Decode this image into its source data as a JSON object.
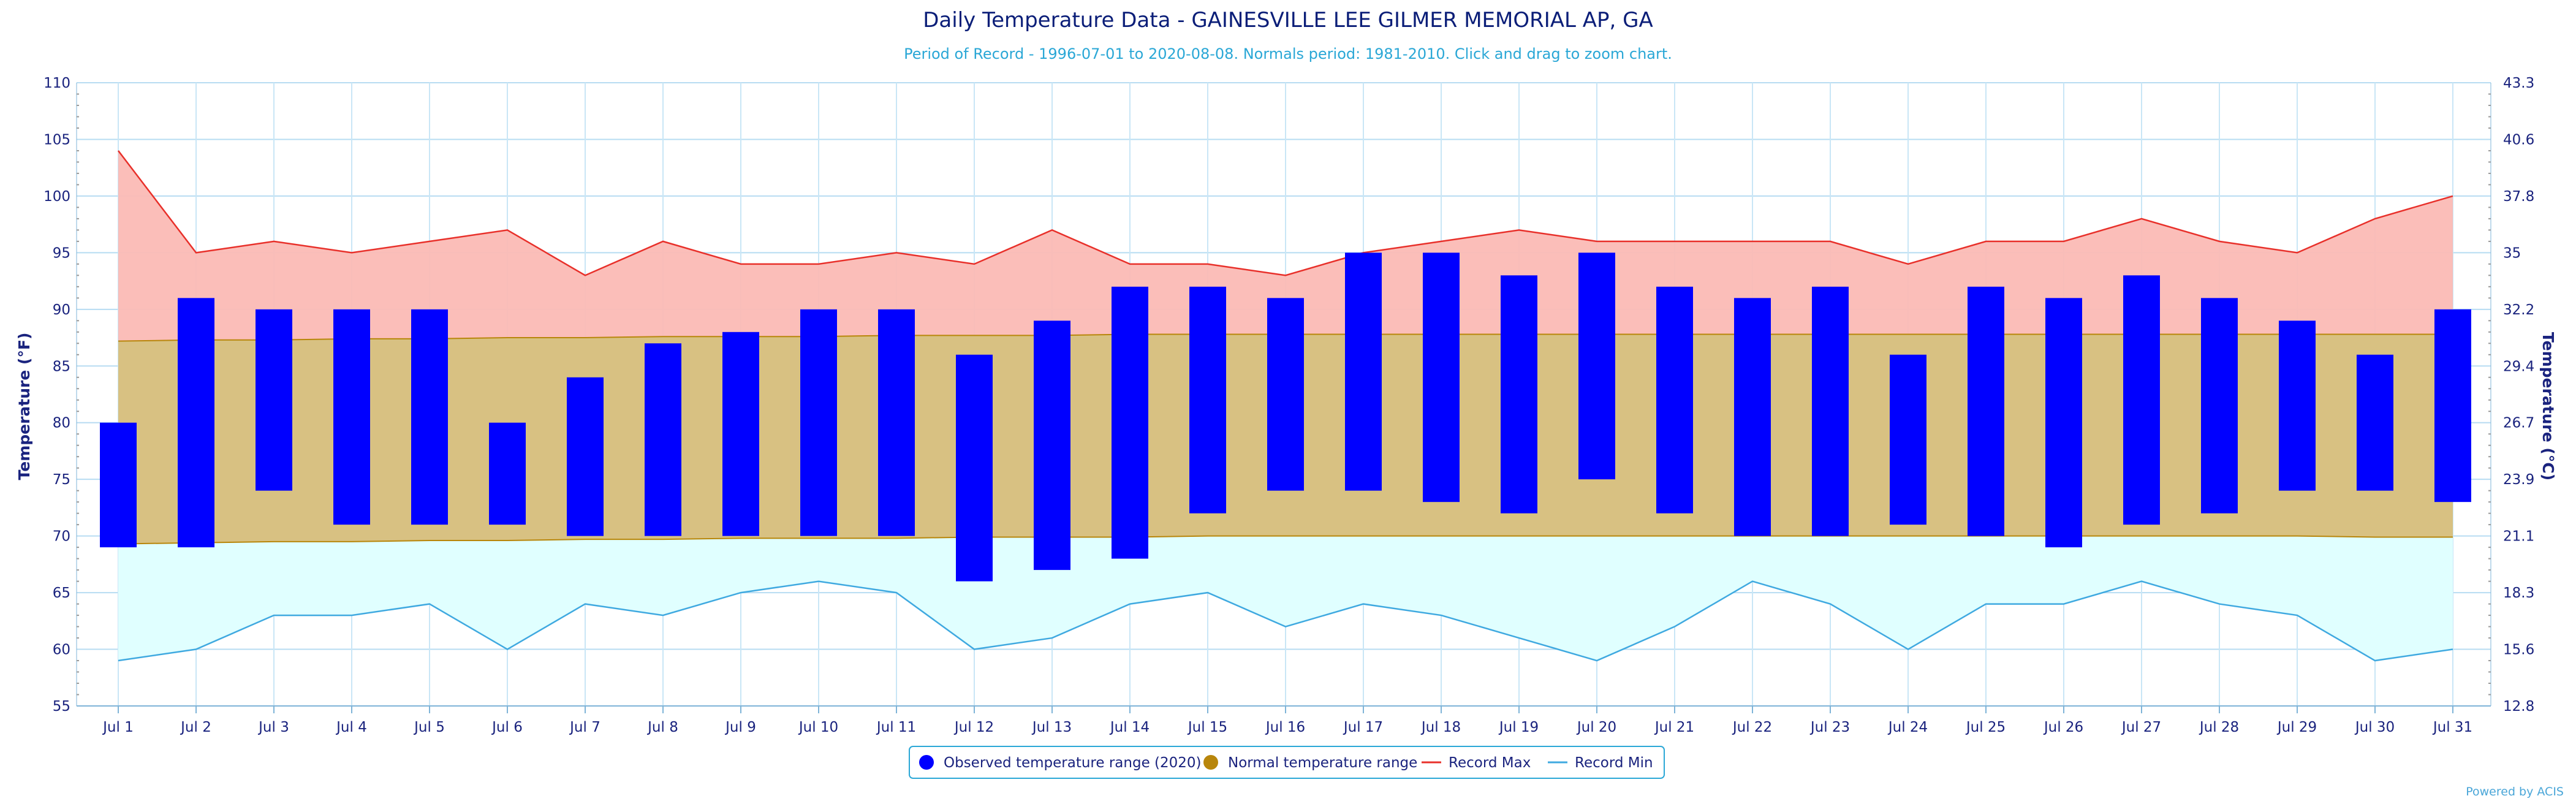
{
  "chart_data": {
    "type": "bar",
    "title": "Daily Temperature Data - GAINESVILLE LEE GILMER MEMORIAL AP, GA",
    "subtitle": "Period of Record - 1996-07-01 to 2020-08-08. Normals period: 1981-2010. Click and drag to zoom chart.",
    "ylabel_left": "Temperature (°F)",
    "ylabel_right": "Temperature (°C)",
    "ylim": [
      55,
      110
    ],
    "y_ticks": [
      55,
      60,
      65,
      70,
      75,
      80,
      85,
      90,
      95,
      100,
      105,
      110
    ],
    "y2_ticks": [
      "12.8",
      "15.6",
      "18.3",
      "21.1",
      "23.9",
      "26.7",
      "29.4",
      "32.2",
      "35",
      "37.8",
      "40.6",
      "43.3"
    ],
    "categories": [
      "Jul 1",
      "Jul 2",
      "Jul 3",
      "Jul 4",
      "Jul 5",
      "Jul 6",
      "Jul 7",
      "Jul 8",
      "Jul 9",
      "Jul 10",
      "Jul 11",
      "Jul 12",
      "Jul 13",
      "Jul 14",
      "Jul 15",
      "Jul 16",
      "Jul 17",
      "Jul 18",
      "Jul 19",
      "Jul 20",
      "Jul 21",
      "Jul 22",
      "Jul 23",
      "Jul 24",
      "Jul 25",
      "Jul 26",
      "Jul 27",
      "Jul 28",
      "Jul 29",
      "Jul 30",
      "Jul 31"
    ],
    "grid": true,
    "legend_position": "bottom-center",
    "series": [
      {
        "name": "Observed temperature range (2020)",
        "kind": "range-bar",
        "color": "#0000ff",
        "low": [
          69,
          69,
          74,
          71,
          71,
          71,
          70,
          70,
          70,
          70,
          70,
          66,
          67,
          68,
          72,
          74,
          74,
          73,
          72,
          75,
          72,
          70,
          70,
          71,
          70,
          69,
          71,
          72,
          74,
          74,
          73
        ],
        "high": [
          80,
          91,
          90,
          90,
          90,
          80,
          84,
          87,
          88,
          90,
          90,
          86,
          89,
          92,
          92,
          91,
          95,
          95,
          93,
          95,
          92,
          91,
          92,
          86,
          92,
          91,
          93,
          91,
          89,
          86,
          90
        ]
      },
      {
        "name": "Normal temperature range",
        "kind": "range-area",
        "color": "#b8860b",
        "low": [
          69.3,
          69.4,
          69.5,
          69.5,
          69.6,
          69.6,
          69.7,
          69.7,
          69.8,
          69.8,
          69.8,
          69.9,
          69.9,
          69.9,
          70.0,
          70.0,
          70.0,
          70.0,
          70.0,
          70.0,
          70.0,
          70.0,
          70.0,
          70.0,
          70.0,
          70.0,
          70.0,
          70.0,
          70.0,
          69.9,
          69.9
        ],
        "high": [
          87.2,
          87.3,
          87.3,
          87.4,
          87.4,
          87.5,
          87.5,
          87.6,
          87.6,
          87.6,
          87.7,
          87.7,
          87.7,
          87.8,
          87.8,
          87.8,
          87.8,
          87.8,
          87.8,
          87.8,
          87.8,
          87.8,
          87.8,
          87.8,
          87.8,
          87.8,
          87.8,
          87.8,
          87.8,
          87.8,
          87.8
        ]
      },
      {
        "name": "Record Max",
        "kind": "line",
        "color": "#e8302a",
        "fill": "#fbbab5",
        "values": [
          104,
          95,
          96,
          95,
          96,
          97,
          93,
          96,
          94,
          94,
          95,
          94,
          97,
          94,
          94,
          93,
          95,
          96,
          97,
          96,
          96,
          96,
          96,
          94,
          96,
          96,
          98,
          96,
          95,
          98,
          100
        ]
      },
      {
        "name": "Record Min",
        "kind": "line",
        "color": "#3fa9e0",
        "fill": "#e0ffff",
        "values": [
          59,
          60,
          63,
          63,
          64,
          60,
          64,
          63,
          65,
          66,
          65,
          60,
          61,
          64,
          65,
          62,
          64,
          63,
          61,
          59,
          62,
          66,
          64,
          60,
          64,
          64,
          66,
          64,
          63,
          59,
          60
        ]
      }
    ]
  },
  "credits": "Powered by ACIS"
}
